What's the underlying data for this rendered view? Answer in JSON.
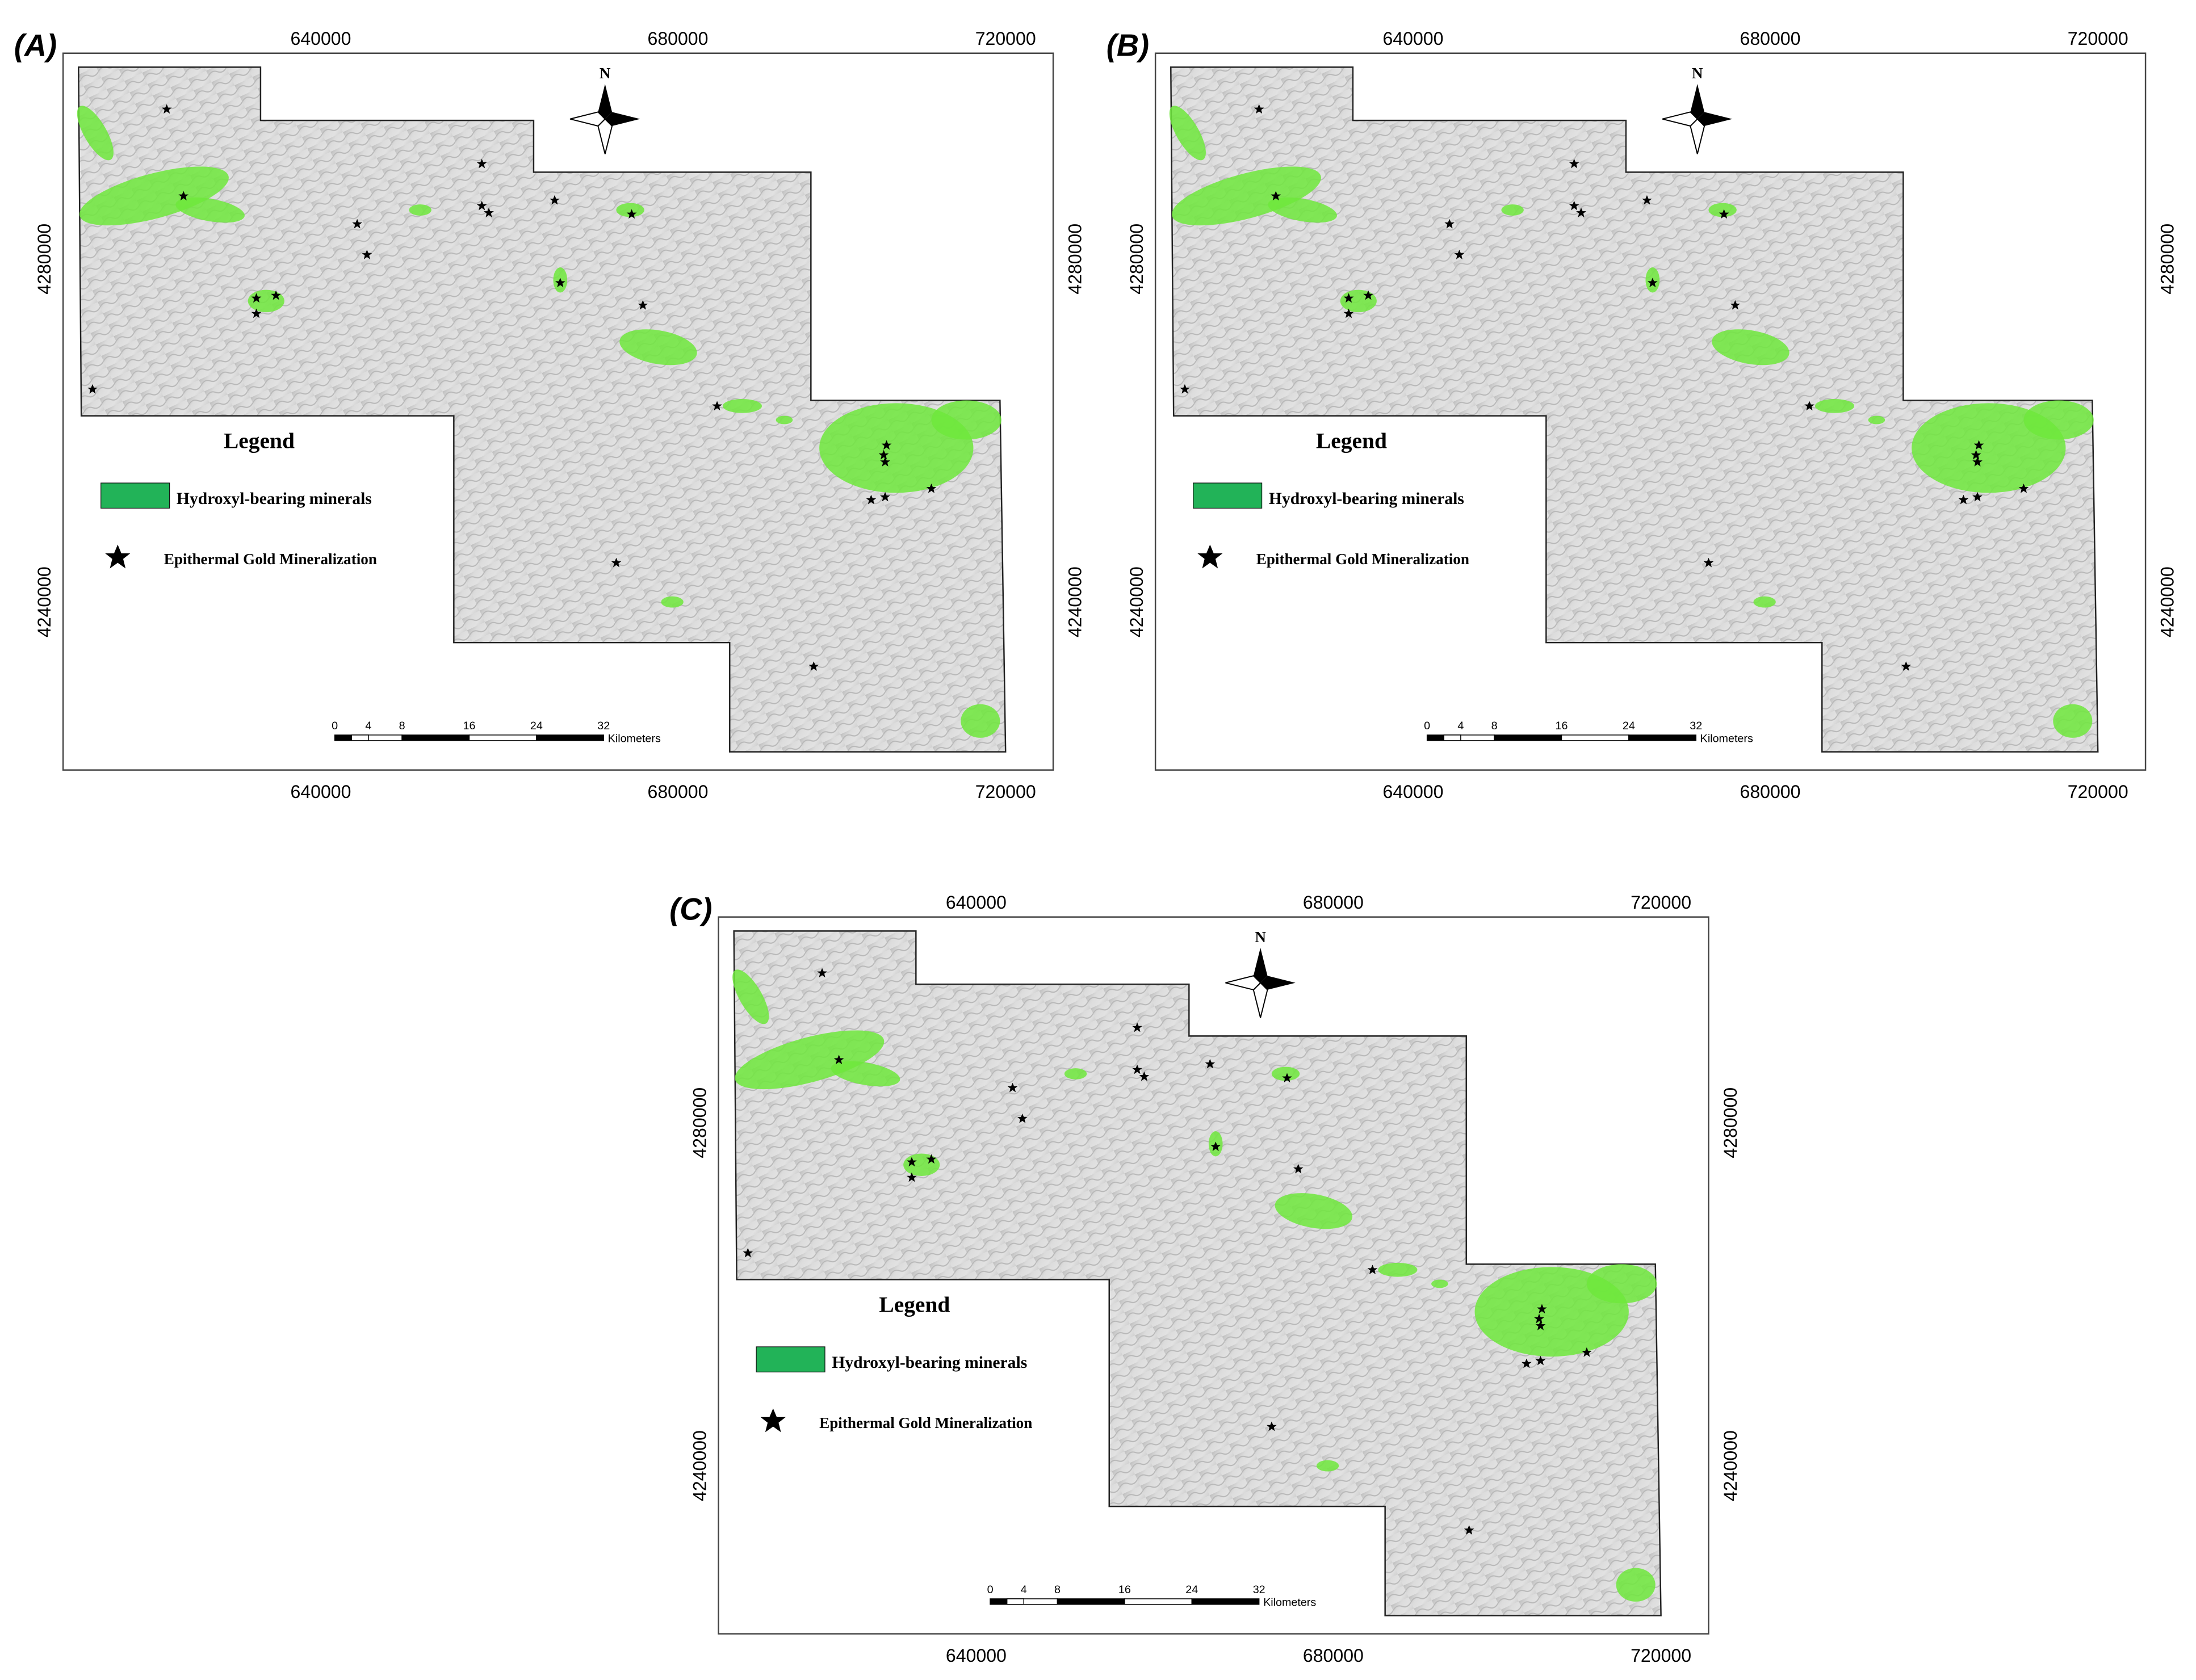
{
  "panels": [
    {
      "label": "(A)",
      "north": "N",
      "x_ticks": [
        "640000",
        "680000",
        "720000"
      ],
      "y_ticks": [
        "4280000",
        "4240000"
      ],
      "legend": {
        "title": "Legend",
        "items": [
          "Hydroxyl-bearing minerals",
          "Epithermal Gold Mineralization"
        ]
      },
      "scale_bar": {
        "ticks": [
          "0",
          "4",
          "8",
          "16",
          "24",
          "32"
        ],
        "unit": "Kilometers"
      }
    },
    {
      "label": "(B)",
      "north": "N",
      "x_ticks": [
        "640000",
        "680000",
        "720000"
      ],
      "y_ticks": [
        "4280000",
        "4240000"
      ],
      "legend": {
        "title": "Legend",
        "items": [
          "Hydroxyl-bearing minerals",
          "Epithermal Gold Mineralization"
        ]
      },
      "scale_bar": {
        "ticks": [
          "0",
          "4",
          "8",
          "16",
          "24",
          "32"
        ],
        "unit": "Kilometers"
      }
    },
    {
      "label": "(C)",
      "north": "N",
      "x_ticks": [
        "640000",
        "680000",
        "720000"
      ],
      "y_ticks": [
        "4280000",
        "4240000"
      ],
      "legend": {
        "title": "Legend",
        "items": [
          "Hydroxyl-bearing minerals",
          "Epithermal Gold Mineralization"
        ]
      },
      "scale_bar": {
        "ticks": [
          "0",
          "4",
          "8",
          "16",
          "24",
          "32"
        ],
        "unit": "Kilometers"
      }
    }
  ]
}
